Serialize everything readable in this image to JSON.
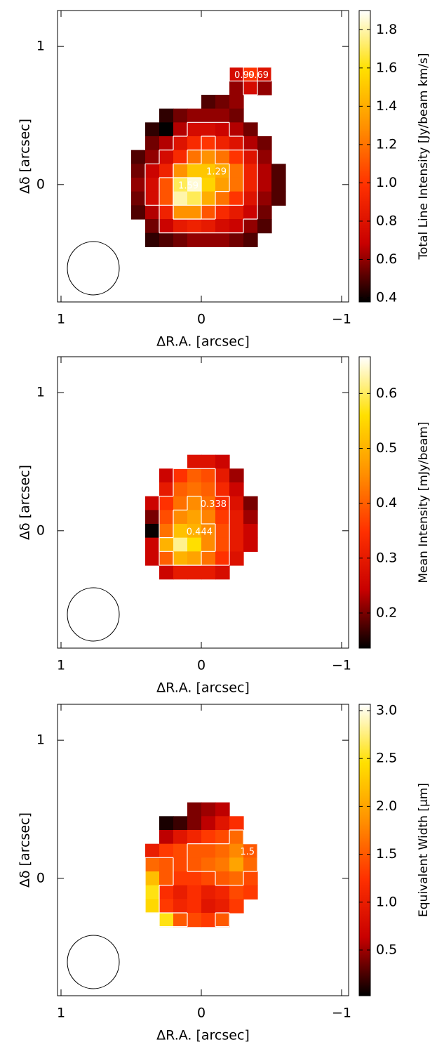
{
  "chart_data": [
    {
      "type": "heatmap",
      "xlabel": "ΔR.A. [arcsec]",
      "ylabel": "Δδ [arcsec]",
      "colorbar_label": "Total Line Intensity [Jy/beam km/s]",
      "xlim": [
        1.025,
        -1.05
      ],
      "ylim": [
        -0.85,
        1.26
      ],
      "xticks": [
        1,
        0,
        {
          "value": -1,
          "label": "−1"
        }
      ],
      "yticks": [
        0,
        1
      ],
      "zlim": [
        0.378,
        1.9
      ],
      "zticks": [
        0.4,
        0.6,
        0.8,
        {
          "value": 1,
          "label": "1.0"
        },
        1.2,
        1.4,
        1.6,
        1.8
      ],
      "colorscale": [
        "#000000",
        "#c80000",
        "#ff3000",
        "#ff9000",
        "#ffe000",
        "#ffffff"
      ],
      "contour_levels": [
        0.69,
        0.99,
        1.29,
        1.59
      ],
      "x": [
        0.45,
        0.35,
        0.25,
        0.15,
        0.05,
        -0.05,
        -0.15,
        -0.25,
        -0.35,
        -0.45,
        -0.55
      ],
      "y": [
        0.8,
        0.7,
        0.6,
        0.5,
        0.4,
        0.3,
        0.2,
        0.1,
        0.0,
        -0.1,
        -0.2,
        -0.3,
        -0.4
      ],
      "z": [
        [
          null,
          null,
          null,
          null,
          null,
          null,
          null,
          0.75,
          1.0,
          0.8,
          null
        ],
        [
          null,
          null,
          null,
          null,
          null,
          null,
          null,
          0.6,
          0.75,
          0.6,
          null
        ],
        [
          null,
          null,
          null,
          null,
          null,
          0.5,
          0.55,
          0.6,
          null,
          null,
          null
        ],
        [
          null,
          null,
          0.45,
          0.55,
          0.6,
          0.6,
          0.6,
          0.55,
          null,
          null,
          null
        ],
        [
          null,
          0.45,
          0.38,
          0.65,
          0.75,
          0.75,
          0.7,
          0.65,
          0.55,
          null,
          null
        ],
        [
          null,
          0.55,
          0.65,
          0.8,
          0.95,
          1.0,
          0.9,
          0.8,
          0.65,
          0.55,
          null
        ],
        [
          0.5,
          0.6,
          0.75,
          0.95,
          1.2,
          1.3,
          1.2,
          1.0,
          0.8,
          0.6,
          null
        ],
        [
          0.55,
          0.7,
          0.9,
          1.3,
          1.5,
          1.5,
          1.4,
          1.2,
          0.9,
          0.65,
          0.5
        ],
        [
          0.6,
          0.75,
          1.1,
          1.7,
          1.85,
          1.55,
          1.35,
          1.2,
          0.9,
          0.65,
          0.5
        ],
        [
          0.55,
          0.75,
          1.1,
          1.8,
          1.7,
          1.4,
          1.2,
          1.0,
          0.8,
          0.6,
          0.5
        ],
        [
          0.5,
          0.65,
          0.9,
          1.3,
          1.3,
          1.1,
          0.95,
          0.85,
          0.7,
          0.55,
          null
        ],
        [
          null,
          0.55,
          0.7,
          0.85,
          0.9,
          0.85,
          0.75,
          0.7,
          0.6,
          0.5,
          null
        ],
        [
          null,
          0.45,
          0.5,
          0.55,
          0.6,
          0.6,
          0.6,
          0.55,
          0.5,
          null,
          null
        ]
      ]
    },
    {
      "type": "heatmap",
      "xlabel": "ΔR.A. [arcsec]",
      "ylabel": "Δδ [arcsec]",
      "colorbar_label": "Mean Intensity [mJy/beam]",
      "xlim": [
        1.025,
        -1.05
      ],
      "ylim": [
        -0.85,
        1.26
      ],
      "xticks": [
        1,
        0,
        {
          "value": -1,
          "label": "−1"
        }
      ],
      "yticks": [
        0,
        1
      ],
      "zlim": [
        0.136,
        0.667
      ],
      "zticks": [
        0.2,
        0.3,
        0.4,
        0.5,
        0.6
      ],
      "colorscale": [
        "#000000",
        "#c80000",
        "#ff3000",
        "#ff9000",
        "#ffe000",
        "#ffffff"
      ],
      "contour_levels": [
        0.338,
        0.444
      ],
      "x": [
        0.35,
        0.25,
        0.15,
        0.05,
        -0.05,
        -0.15,
        -0.25,
        -0.35
      ],
      "y": [
        0.5,
        0.4,
        0.3,
        0.2,
        0.1,
        0.0,
        -0.1,
        -0.2,
        -0.3
      ],
      "z": [
        [
          null,
          null,
          null,
          0.28,
          0.28,
          0.25,
          null,
          null
        ],
        [
          null,
          0.25,
          0.35,
          0.4,
          0.38,
          0.3,
          0.22,
          null
        ],
        [
          null,
          0.3,
          0.4,
          0.42,
          0.4,
          0.33,
          0.25,
          null
        ],
        [
          0.25,
          0.35,
          0.42,
          0.45,
          0.42,
          0.34,
          0.28,
          0.2
        ],
        [
          0.2,
          0.38,
          0.45,
          0.48,
          0.44,
          0.36,
          0.3,
          0.22
        ],
        [
          0.14,
          0.42,
          0.52,
          0.5,
          0.45,
          0.38,
          0.3,
          0.25
        ],
        [
          0.25,
          0.5,
          0.62,
          0.56,
          0.45,
          0.38,
          0.3,
          0.25
        ],
        [
          0.25,
          0.4,
          0.5,
          0.48,
          0.42,
          0.35,
          0.28,
          null
        ],
        [
          null,
          0.25,
          0.3,
          0.3,
          0.3,
          0.27,
          null,
          null
        ]
      ]
    },
    {
      "type": "heatmap",
      "xlabel": "ΔR.A. [arcsec]",
      "ylabel": "Δδ [arcsec]",
      "colorbar_label": "Equivalent Width [μm]",
      "xlim": [
        1.025,
        -1.05
      ],
      "ylim": [
        -0.85,
        1.26
      ],
      "xticks": [
        1,
        0,
        {
          "value": -1,
          "label": "−1"
        }
      ],
      "yticks": [
        0,
        1
      ],
      "zlim": [
        0.023,
        3.066
      ],
      "zticks": [
        0.5,
        {
          "value": 1,
          "label": "1.0"
        },
        1.5,
        {
          "value": 2,
          "label": "2.0"
        },
        2.5,
        {
          "value": 3,
          "label": "3.0"
        }
      ],
      "colorscale": [
        "#000000",
        "#c80000",
        "#ff3000",
        "#ff9000",
        "#ffe000",
        "#ffffff"
      ],
      "contour_levels": [
        1.5
      ],
      "x": [
        0.35,
        0.25,
        0.15,
        0.05,
        -0.05,
        -0.15,
        -0.25,
        -0.35
      ],
      "y": [
        0.5,
        0.4,
        0.3,
        0.2,
        0.1,
        0.0,
        -0.1,
        -0.2,
        -0.3
      ],
      "z": [
        [
          null,
          null,
          null,
          0.4,
          0.5,
          0.6,
          null,
          null
        ],
        [
          null,
          0.1,
          0.2,
          0.4,
          0.6,
          0.9,
          1.2,
          null
        ],
        [
          null,
          0.6,
          0.9,
          1.1,
          1.3,
          1.4,
          1.6,
          null
        ],
        [
          1.0,
          1.3,
          1.4,
          1.5,
          1.5,
          1.6,
          1.8,
          1.5
        ],
        [
          1.6,
          1.5,
          1.4,
          1.5,
          1.6,
          1.7,
          2.0,
          1.6
        ],
        [
          2.2,
          1.5,
          1.3,
          1.3,
          1.4,
          1.5,
          1.6,
          1.4
        ],
        [
          2.5,
          1.2,
          1.0,
          1.2,
          1.0,
          1.1,
          1.4,
          1.3
        ],
        [
          2.4,
          1.3,
          1.1,
          1.2,
          0.9,
          1.0,
          1.3,
          null
        ],
        [
          null,
          2.5,
          1.5,
          1.4,
          1.3,
          1.5,
          null,
          null
        ]
      ]
    }
  ]
}
